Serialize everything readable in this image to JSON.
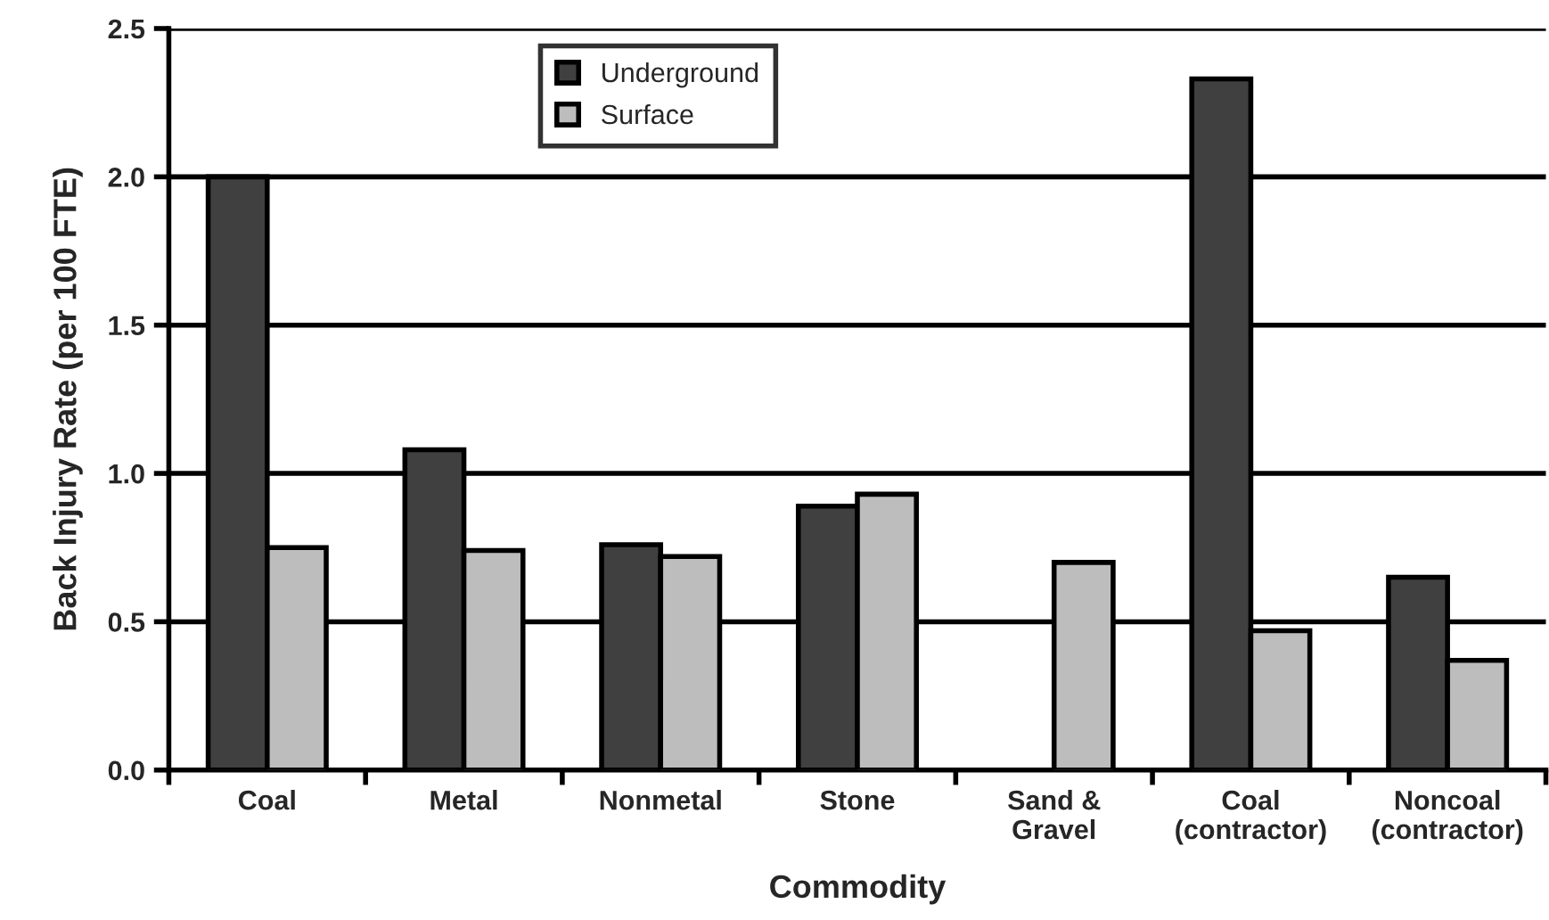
{
  "chart_data": {
    "type": "bar",
    "xlabel": "Commodity",
    "ylabel": "Back Injury Rate (per 100 FTE)",
    "categories": [
      "Coal",
      "Metal",
      "Nonmetal",
      "Stone",
      "Sand &\nGravel",
      "Coal\n(contractor)",
      "Noncoal\n(contractor)"
    ],
    "series": [
      {
        "name": "Underground",
        "color": "#404040",
        "values": [
          2.0,
          1.08,
          0.76,
          0.89,
          null,
          2.33,
          0.65
        ]
      },
      {
        "name": "Surface",
        "color": "#bdbdbd",
        "values": [
          0.75,
          0.74,
          0.72,
          0.93,
          0.7,
          0.47,
          0.37
        ]
      }
    ],
    "ylim": [
      0,
      2.5
    ],
    "yticks": [
      {
        "value": 0,
        "label": "0.0"
      },
      0.5,
      {
        "value": 1,
        "label": "1.0"
      },
      1.5,
      {
        "value": 2,
        "label": "2.0"
      },
      2.5
    ],
    "grid": "y",
    "legend": "top"
  }
}
